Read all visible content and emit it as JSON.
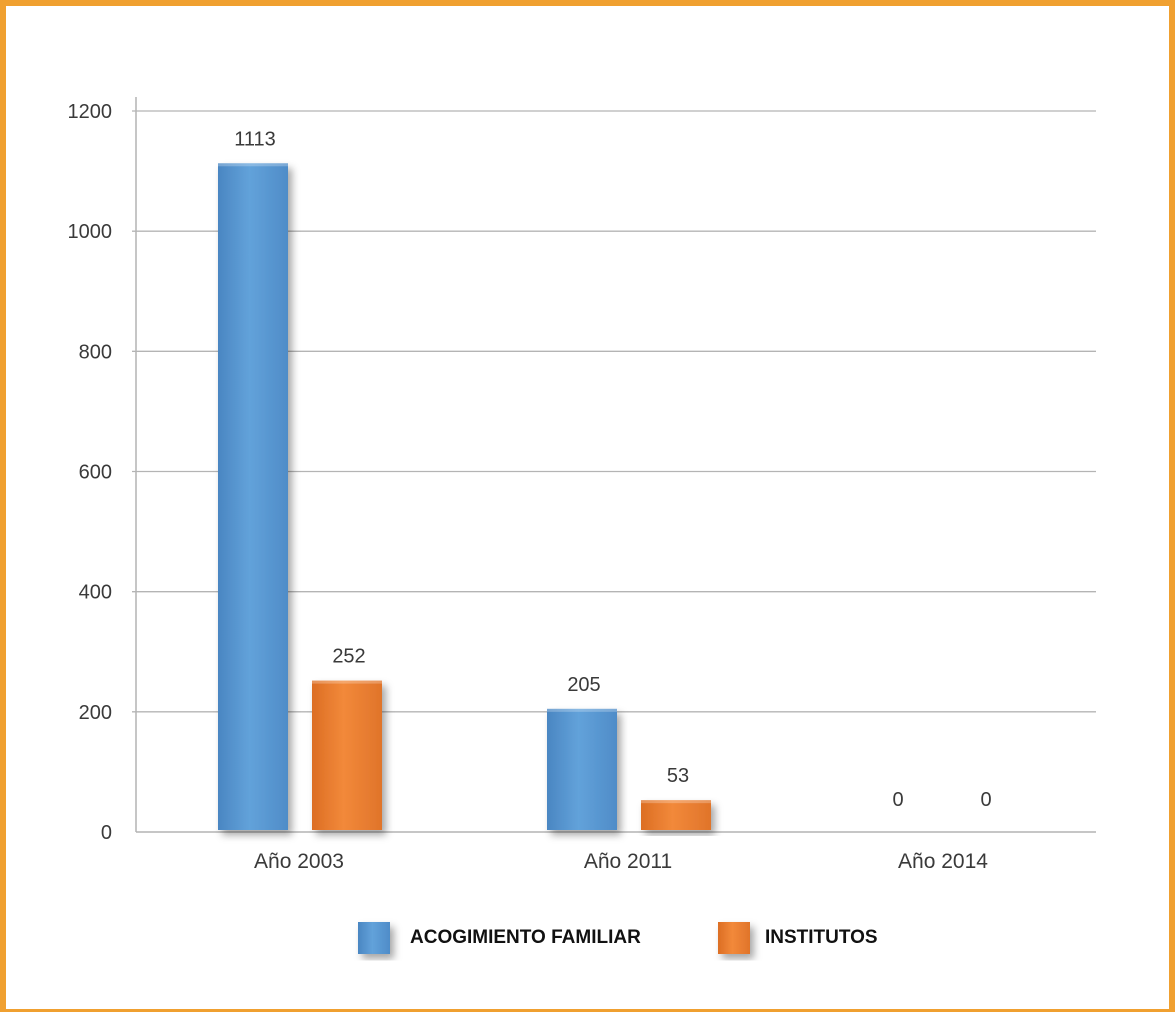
{
  "chart_data": {
    "type": "bar",
    "categories": [
      "Año 2003",
      "Año 2011",
      "Año 2014"
    ],
    "series": [
      {
        "name": "ACOGIMIENTO FAMILIAR",
        "values": [
          1113,
          205,
          0
        ],
        "color": "#5b9bd5"
      },
      {
        "name": "INSTITUTOS",
        "values": [
          252,
          53,
          0
        ],
        "color": "#ed7d31"
      }
    ],
    "yticks": [
      0,
      200,
      400,
      600,
      800,
      1000,
      1200
    ],
    "ylim": [
      0,
      1200
    ],
    "grid": true,
    "legend_position": "bottom"
  },
  "colors": {
    "frame": "#f0a030",
    "grid": "#b4b4b4"
  }
}
